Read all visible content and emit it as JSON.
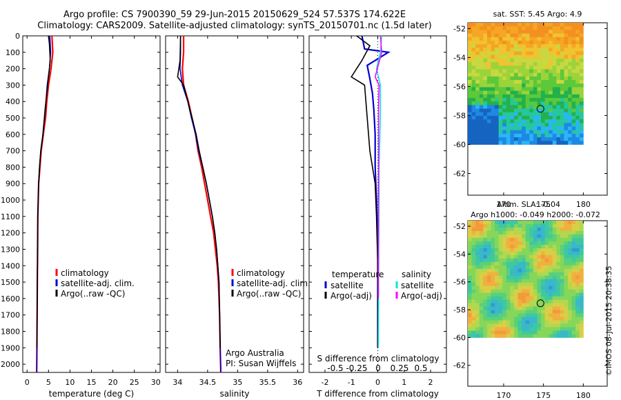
{
  "header": {
    "line1": "Argo profile: CS 7900390_59 29-Jun-2015 20150629_524 57.537S 174.622E",
    "line2": "Climatology: CARS2009. Satellite-adjusted climatology: synTS_20150701.nc (1.5d later)"
  },
  "footer_stamp": "©IMOS 08-Jul-2015 20:38:35",
  "colors": {
    "climatology": "#ff0000",
    "satellite": "#0000cc",
    "argo": "#000000",
    "sal_sat": "#00e5e5",
    "sal_argo": "#ff00ff"
  },
  "chart_data": [
    {
      "type": "line",
      "id": "temperature",
      "xlabel": "temperature (deg C)",
      "xlim": [
        -1,
        31
      ],
      "ylim": [
        2050,
        0
      ],
      "xticks": [
        0,
        5,
        10,
        15,
        20,
        25,
        30
      ],
      "yticks": [
        0,
        100,
        200,
        300,
        400,
        500,
        600,
        700,
        800,
        900,
        1000,
        1100,
        1200,
        1300,
        1400,
        1500,
        1600,
        1700,
        1800,
        1900,
        2000
      ],
      "legend": [
        "climatology",
        "satellite-adj. clim.",
        "Argo(..raw -QC)"
      ],
      "series": [
        {
          "name": "climatology",
          "color": "#ff0000",
          "points": [
            [
              5.8,
              0
            ],
            [
              6.0,
              100
            ],
            [
              5.6,
              200
            ],
            [
              5.0,
              300
            ],
            [
              4.6,
              400
            ],
            [
              4.3,
              500
            ],
            [
              3.8,
              600
            ],
            [
              3.3,
              700
            ],
            [
              3.0,
              800
            ],
            [
              2.7,
              900
            ],
            [
              2.6,
              1000
            ],
            [
              2.5,
              1100
            ],
            [
              2.45,
              1300
            ],
            [
              2.4,
              1500
            ],
            [
              2.35,
              1700
            ],
            [
              2.3,
              1900
            ],
            [
              2.25,
              2050
            ]
          ]
        },
        {
          "name": "satellite-adj. clim.",
          "color": "#0000cc",
          "points": [
            [
              5.3,
              0
            ],
            [
              5.5,
              100
            ],
            [
              5.2,
              200
            ],
            [
              4.7,
              300
            ],
            [
              4.4,
              400
            ],
            [
              4.1,
              500
            ],
            [
              3.7,
              600
            ],
            [
              3.2,
              700
            ],
            [
              2.9,
              800
            ],
            [
              2.7,
              900
            ],
            [
              2.6,
              1000
            ],
            [
              2.5,
              1100
            ],
            [
              2.45,
              1300
            ],
            [
              2.4,
              1500
            ],
            [
              2.35,
              1700
            ],
            [
              2.3,
              1900
            ],
            [
              2.25,
              2050
            ]
          ]
        },
        {
          "name": "Argo(..raw -QC)",
          "color": "#000000",
          "points": [
            [
              5.0,
              0
            ],
            [
              5.2,
              50
            ],
            [
              5.4,
              150
            ],
            [
              5.0,
              250
            ],
            [
              4.6,
              350
            ],
            [
              4.2,
              450
            ],
            [
              3.7,
              600
            ],
            [
              3.2,
              700
            ],
            [
              2.9,
              800
            ],
            [
              2.7,
              900
            ],
            [
              2.6,
              1000
            ],
            [
              2.5,
              1100
            ],
            [
              2.45,
              1300
            ],
            [
              2.4,
              1500
            ],
            [
              2.35,
              1700
            ],
            [
              2.3,
              1900
            ]
          ]
        }
      ]
    },
    {
      "type": "line",
      "id": "salinity",
      "xlabel": "salinity",
      "xlim": [
        33.8,
        36.1
      ],
      "ylim": [
        2050,
        0
      ],
      "xticks": [
        34,
        34.5,
        35,
        35.5,
        36
      ],
      "legend": [
        "climatology",
        "satellite-adj. clim.",
        "Argo(..raw -QC)"
      ],
      "note": [
        "Argo Australia",
        "PI: Susan Wijffels"
      ],
      "series": [
        {
          "name": "climatology",
          "color": "#ff0000",
          "points": [
            [
              34.1,
              0
            ],
            [
              34.1,
              100
            ],
            [
              34.08,
              200
            ],
            [
              34.1,
              300
            ],
            [
              34.18,
              400
            ],
            [
              34.24,
              500
            ],
            [
              34.3,
              600
            ],
            [
              34.34,
              700
            ],
            [
              34.4,
              800
            ],
            [
              34.45,
              900
            ],
            [
              34.5,
              1000
            ],
            [
              34.55,
              1100
            ],
            [
              34.6,
              1200
            ],
            [
              34.63,
              1300
            ],
            [
              34.66,
              1400
            ],
            [
              34.68,
              1500
            ],
            [
              34.7,
              1700
            ],
            [
              34.71,
              1900
            ],
            [
              34.72,
              2050
            ]
          ]
        },
        {
          "name": "satellite-adj. clim.",
          "color": "#0000cc",
          "points": [
            [
              34.05,
              0
            ],
            [
              34.05,
              100
            ],
            [
              34.04,
              200
            ],
            [
              34.08,
              300
            ],
            [
              34.17,
              400
            ],
            [
              34.23,
              500
            ],
            [
              34.3,
              600
            ],
            [
              34.35,
              700
            ],
            [
              34.42,
              800
            ],
            [
              34.48,
              900
            ],
            [
              34.53,
              1000
            ],
            [
              34.58,
              1100
            ],
            [
              34.62,
              1200
            ],
            [
              34.65,
              1300
            ],
            [
              34.67,
              1400
            ],
            [
              34.69,
              1500
            ],
            [
              34.7,
              1700
            ],
            [
              34.71,
              1900
            ],
            [
              34.72,
              2050
            ]
          ]
        },
        {
          "name": "Argo(..raw -QC)",
          "color": "#000000",
          "points": [
            [
              34.05,
              0
            ],
            [
              34.04,
              150
            ],
            [
              34.0,
              250
            ],
            [
              34.1,
              300
            ],
            [
              34.17,
              400
            ],
            [
              34.24,
              500
            ],
            [
              34.31,
              600
            ],
            [
              34.36,
              700
            ],
            [
              34.42,
              800
            ],
            [
              34.48,
              900
            ],
            [
              34.53,
              1000
            ],
            [
              34.58,
              1100
            ],
            [
              34.62,
              1200
            ],
            [
              34.65,
              1300
            ],
            [
              34.67,
              1400
            ],
            [
              34.69,
              1500
            ],
            [
              34.7,
              1700
            ],
            [
              34.71,
              1900
            ]
          ]
        }
      ]
    },
    {
      "type": "line",
      "id": "difference",
      "xlabel": "T difference from climatology",
      "xlabel2": "S difference from climatology",
      "xlim": [
        -2.6,
        2.6
      ],
      "ylim": [
        2050,
        0
      ],
      "xticks": [
        -2,
        -1,
        0,
        1,
        2
      ],
      "xticks2_values": [
        -0.5,
        -0.25,
        0,
        0.25,
        0.5
      ],
      "xticks2_labels": [
        "-0.5",
        "-0.25",
        "0",
        "0.25",
        "0.5"
      ],
      "legend_t_title": "temperature",
      "legend_s_title": "salinity",
      "legend_t": [
        "satellite",
        "Argo(-adj)"
      ],
      "legend_s": [
        "satellite",
        "Argo(-adj)"
      ],
      "series": [
        {
          "name": "T satellite",
          "color": "#0000cc",
          "points": [
            [
              -0.6,
              0
            ],
            [
              -0.5,
              80
            ],
            [
              0.4,
              100
            ],
            [
              -0.4,
              180
            ],
            [
              -0.3,
              260
            ],
            [
              -0.2,
              350
            ],
            [
              -0.15,
              450
            ],
            [
              -0.1,
              600
            ],
            [
              -0.1,
              800
            ],
            [
              -0.05,
              1000
            ],
            [
              0,
              1300
            ],
            [
              0,
              1600
            ],
            [
              0,
              1900
            ]
          ]
        },
        {
          "name": "T Argo(-adj)",
          "color": "#000000",
          "points": [
            [
              -0.8,
              0
            ],
            [
              -0.3,
              60
            ],
            [
              -0.6,
              150
            ],
            [
              -1.0,
              250
            ],
            [
              -0.5,
              300
            ],
            [
              -0.4,
              500
            ],
            [
              -0.3,
              700
            ],
            [
              -0.1,
              900
            ],
            [
              -0.05,
              1100
            ],
            [
              0,
              1400
            ],
            [
              0,
              1700
            ],
            [
              0,
              1900
            ]
          ]
        },
        {
          "name": "S satellite",
          "color": "#00e5e5",
          "points": [
            [
              0.15,
              0
            ],
            [
              0.1,
              100
            ],
            [
              -0.05,
              200
            ],
            [
              0.1,
              300
            ],
            [
              0.1,
              450
            ],
            [
              0.08,
              600
            ],
            [
              0.05,
              800
            ],
            [
              0.05,
              1000
            ],
            [
              0.04,
              1300
            ],
            [
              0.03,
              1600
            ],
            [
              0.02,
              1900
            ]
          ]
        },
        {
          "name": "S Argo(-adj)",
          "color": "#ff00ff",
          "points": [
            [
              0.1,
              0
            ],
            [
              0.15,
              100
            ],
            [
              -0.1,
              250
            ],
            [
              0.05,
              300
            ],
            [
              0.03,
              450
            ],
            [
              0.03,
              600
            ],
            [
              0.03,
              800
            ],
            [
              0.02,
              1000
            ],
            [
              0.02,
              1300
            ],
            [
              0.02,
              1600
            ]
          ]
        }
      ]
    },
    {
      "type": "heatmap",
      "id": "sst_map",
      "title": "sat. SST: 5.45 Argo: 4.9",
      "xlim": [
        165.5,
        183
      ],
      "ylim": [
        -63.5,
        -51.6
      ],
      "xticks": [
        170,
        175,
        180
      ],
      "yticks": [
        -52,
        -54,
        -56,
        -58,
        -60,
        -62
      ],
      "float_position": [
        174.622,
        -57.537
      ]
    },
    {
      "type": "heatmap",
      "id": "sla_map",
      "title": "Altim. SLA: -0.04",
      "subtitle": "Argo h1000: -0.049 h2000: -0.072",
      "xlim": [
        165.5,
        183
      ],
      "ylim": [
        -63.5,
        -51.6
      ],
      "xticks": [
        170,
        175,
        180
      ],
      "yticks": [
        -52,
        -54,
        -56,
        -58,
        -60,
        -62
      ],
      "float_position": [
        174.622,
        -57.537
      ]
    }
  ]
}
